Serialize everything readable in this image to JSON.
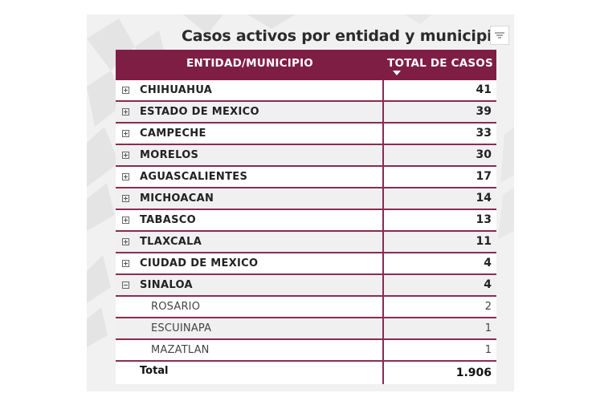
{
  "title": "Casos activos por entidad y municipio:",
  "icons": {
    "filter": "filter-lines-icon",
    "sort": "sort-descending-icon",
    "expand": "plus-box-icon",
    "collapse": "minus-box-icon"
  },
  "colors": {
    "header": "#7f1e45",
    "row_border": "#8a2b52",
    "panel": "#f1f1f1"
  },
  "table": {
    "headers": {
      "name": "ENTIDAD/MUNICIPIO",
      "total": "TOTAL DE CASOS"
    },
    "rows": [
      {
        "type": "state",
        "expanded": false,
        "name": "CHIHUAHUA",
        "total": "41"
      },
      {
        "type": "state",
        "expanded": false,
        "name": "ESTADO DE MEXICO",
        "total": "39"
      },
      {
        "type": "state",
        "expanded": false,
        "name": "CAMPECHE",
        "total": "33"
      },
      {
        "type": "state",
        "expanded": false,
        "name": "MORELOS",
        "total": "30"
      },
      {
        "type": "state",
        "expanded": false,
        "name": "AGUASCALIENTES",
        "total": "17"
      },
      {
        "type": "state",
        "expanded": false,
        "name": "MICHOACAN",
        "total": "14"
      },
      {
        "type": "state",
        "expanded": false,
        "name": "TABASCO",
        "total": "13"
      },
      {
        "type": "state",
        "expanded": false,
        "name": "TLAXCALA",
        "total": "11"
      },
      {
        "type": "state",
        "expanded": false,
        "name": "CIUDAD DE MEXICO",
        "total": "4"
      },
      {
        "type": "state",
        "expanded": true,
        "name": "SINALOA",
        "total": "4"
      },
      {
        "type": "municipio",
        "name": "ROSARIO",
        "total": "2"
      },
      {
        "type": "municipio",
        "name": "ESCUINAPA",
        "total": "1"
      },
      {
        "type": "municipio",
        "name": "MAZATLAN",
        "total": "1"
      }
    ],
    "footer": {
      "label": "Total",
      "value": "1.906"
    }
  }
}
